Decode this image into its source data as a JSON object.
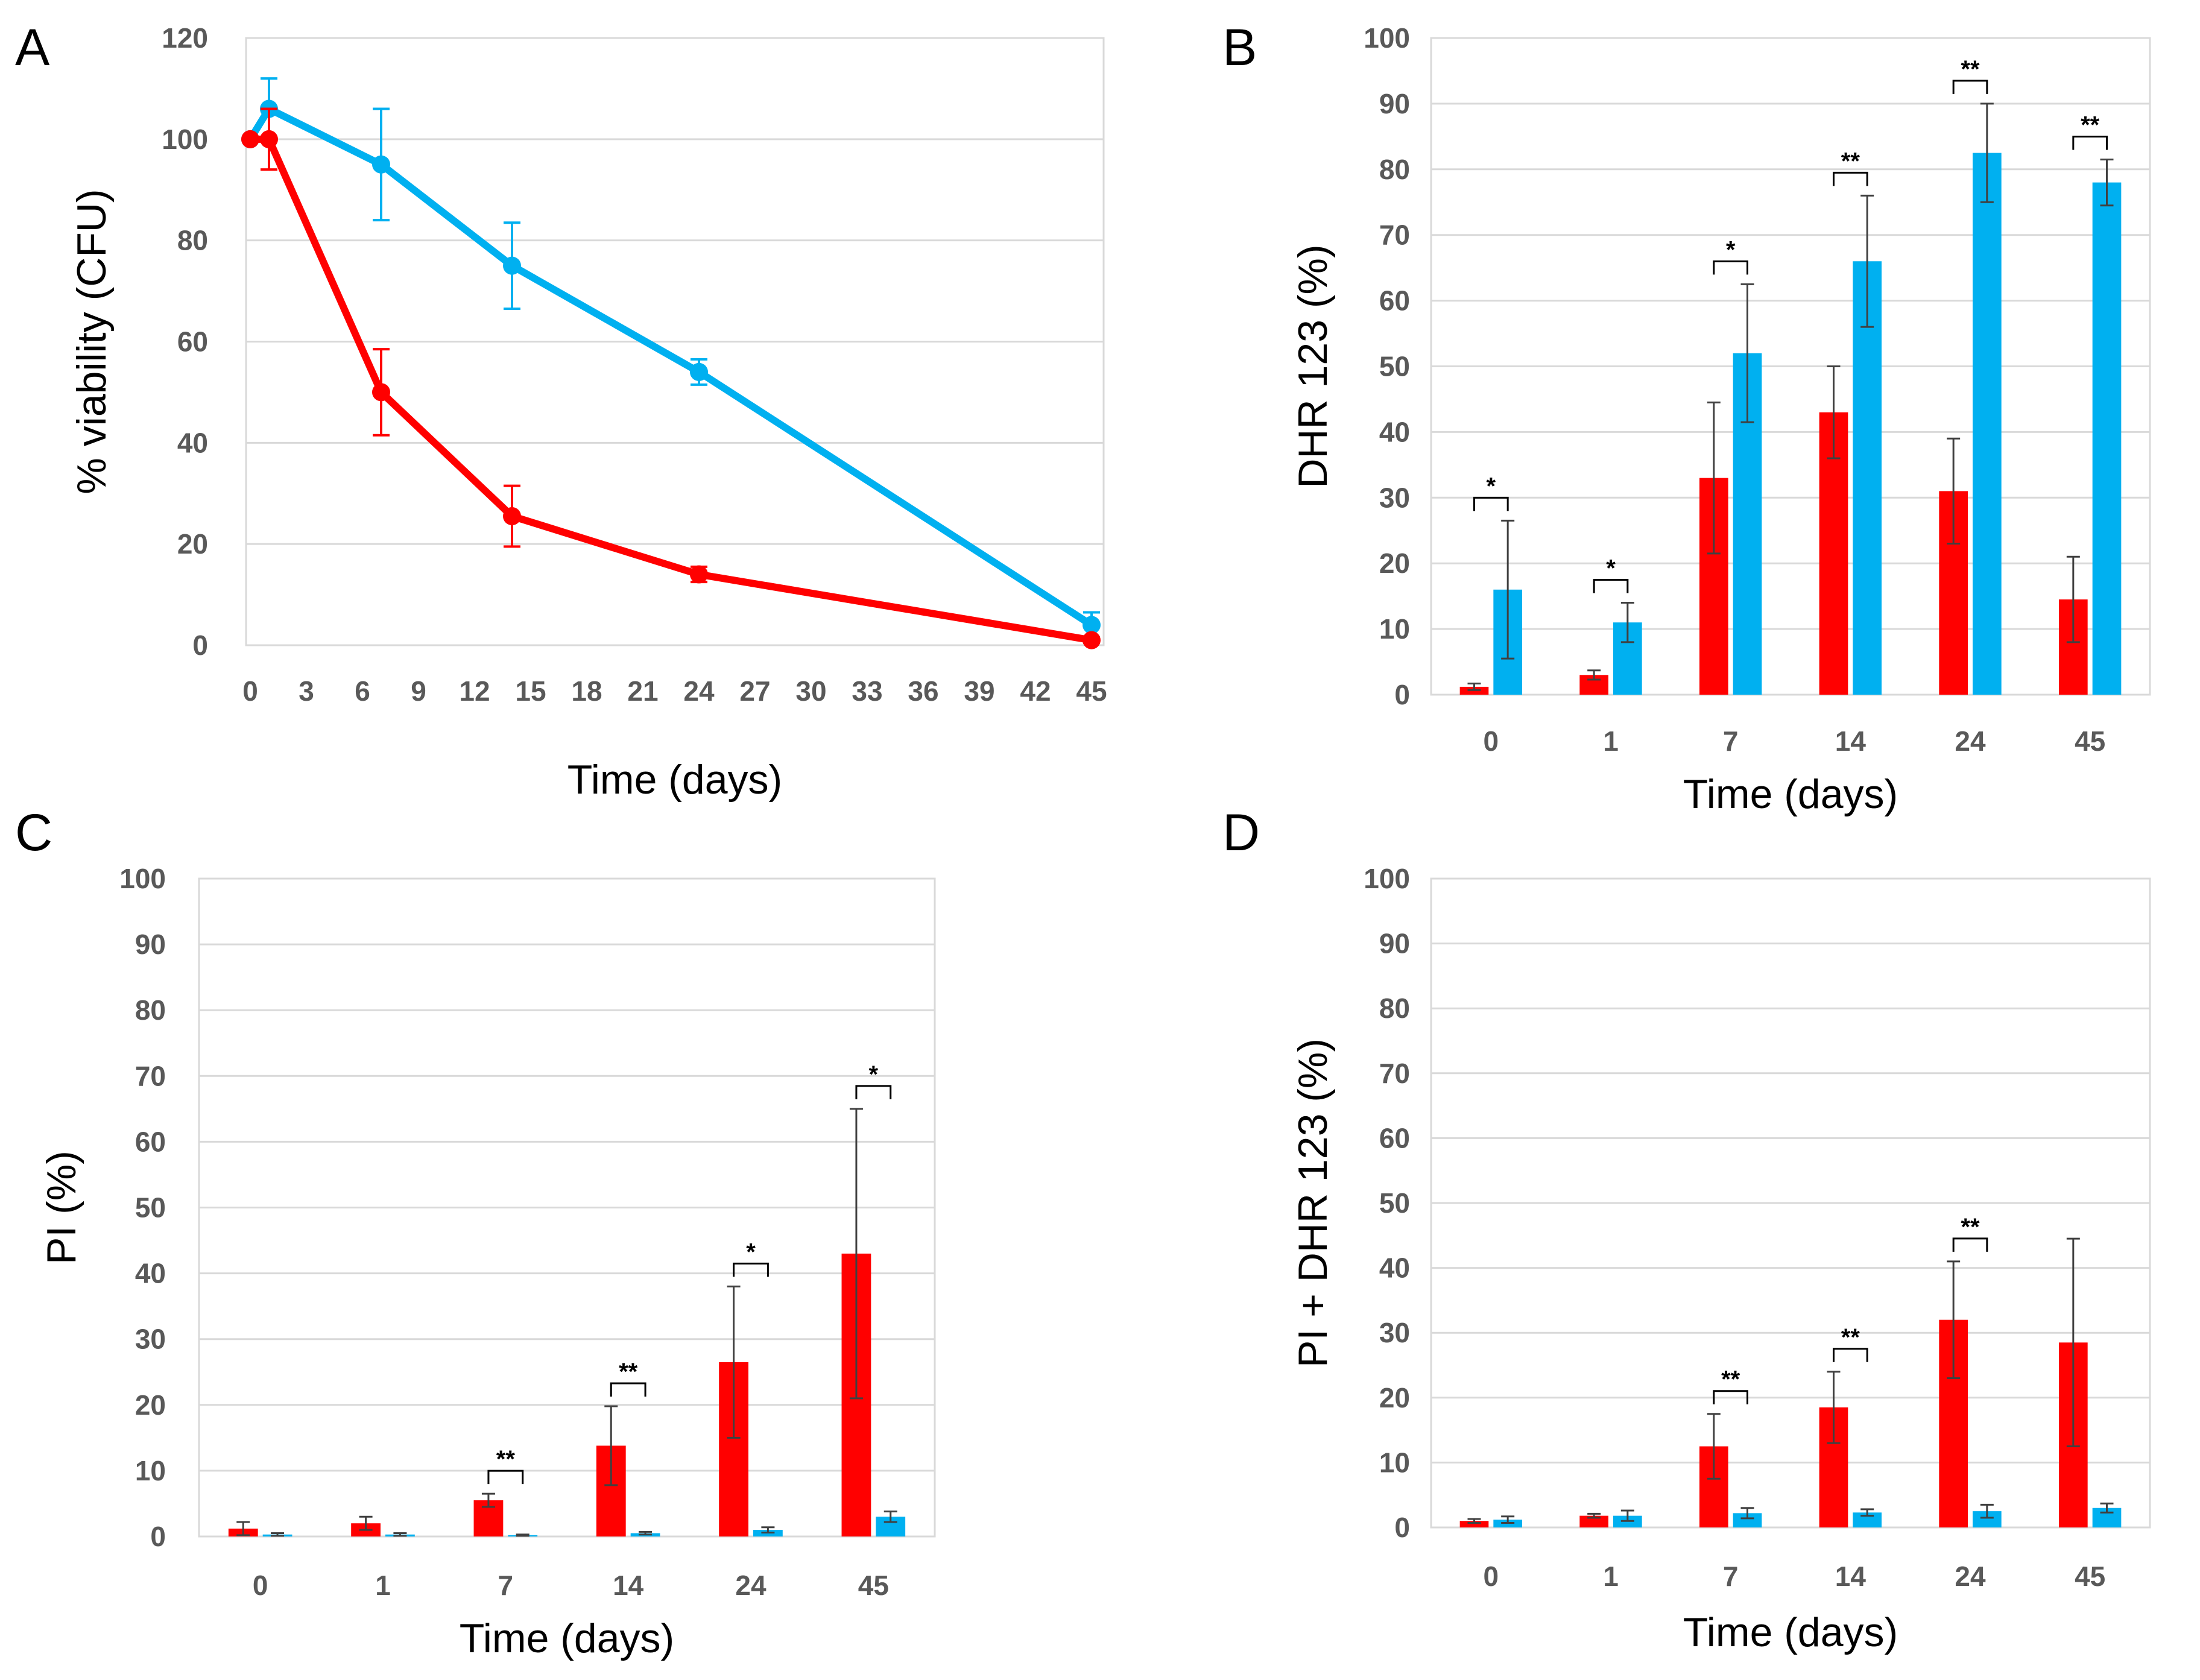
{
  "colors": {
    "red": "#ff0000",
    "blue": "#00b0f0",
    "errorbar_bar": "#404040"
  },
  "chart_data": [
    {
      "panel": "A",
      "type": "line",
      "xlabel": "Time (days)",
      "ylabel": "% viability (CFU)",
      "xlim": [
        0,
        45
      ],
      "ylim": [
        0,
        120
      ],
      "xticks": [
        0,
        3,
        6,
        9,
        12,
        15,
        18,
        21,
        24,
        27,
        30,
        33,
        36,
        39,
        42,
        45
      ],
      "yticks": [
        0,
        20,
        40,
        60,
        80,
        100,
        120
      ],
      "grid": true,
      "series": [
        {
          "color": "#00b0f0",
          "x": [
            0,
            1,
            7,
            14,
            24,
            45
          ],
          "y": [
            100,
            106,
            95,
            75,
            54,
            4
          ],
          "err": [
            0,
            6,
            11,
            8.5,
            2.5,
            2.5
          ]
        },
        {
          "color": "#ff0000",
          "x": [
            0,
            1,
            7,
            14,
            24,
            45
          ],
          "y": [
            100,
            100,
            50,
            25.5,
            14,
            1
          ],
          "err": [
            0,
            6,
            8.5,
            6,
            1.5,
            0.5
          ]
        }
      ]
    },
    {
      "panel": "B",
      "type": "bar",
      "categories": [
        "0",
        "1",
        "7",
        "14",
        "24",
        "45"
      ],
      "xlabel": "Time (days)",
      "ylabel": "DHR 123 (%)",
      "ylim": [
        0,
        100
      ],
      "yticks": [
        0,
        10,
        20,
        30,
        40,
        50,
        60,
        70,
        80,
        90,
        100
      ],
      "grid": true,
      "series": [
        {
          "color": "#ff0000",
          "values": [
            1.2,
            3,
            33,
            43,
            31,
            14.5
          ],
          "err": [
            0.5,
            0.7,
            11.5,
            7,
            8,
            6.5
          ]
        },
        {
          "color": "#00b0f0",
          "values": [
            16,
            11,
            52,
            66,
            82.5,
            78
          ],
          "err": [
            10.5,
            3,
            10.5,
            10,
            7.5,
            3.5
          ]
        }
      ],
      "significance": [
        "*",
        "*",
        "*",
        "**",
        "**",
        "**"
      ]
    },
    {
      "panel": "C",
      "type": "bar",
      "categories": [
        "0",
        "1",
        "7",
        "14",
        "24",
        "45"
      ],
      "xlabel": "Time (days)",
      "ylabel": "PI (%)",
      "ylim": [
        0,
        100
      ],
      "yticks": [
        0,
        10,
        20,
        30,
        40,
        50,
        60,
        70,
        80,
        90,
        100
      ],
      "grid": true,
      "series": [
        {
          "color": "#ff0000",
          "values": [
            1.2,
            2,
            5.5,
            13.8,
            26.5,
            43
          ],
          "err": [
            1,
            1,
            1,
            6,
            11.5,
            22
          ]
        },
        {
          "color": "#00b0f0",
          "values": [
            0.3,
            0.3,
            0.2,
            0.5,
            1,
            3
          ],
          "err": [
            0.2,
            0.2,
            0.1,
            0.2,
            0.4,
            0.8
          ]
        }
      ],
      "significance": [
        "",
        "",
        "**",
        "**",
        "*",
        "*"
      ]
    },
    {
      "panel": "D",
      "type": "bar",
      "categories": [
        "0",
        "1",
        "7",
        "14",
        "24",
        "45"
      ],
      "xlabel": "Time (days)",
      "ylabel": "PI + DHR 123 (%)",
      "ylim": [
        0,
        100
      ],
      "yticks": [
        0,
        10,
        20,
        30,
        40,
        50,
        60,
        70,
        80,
        90,
        100
      ],
      "grid": true,
      "series": [
        {
          "color": "#ff0000",
          "values": [
            1,
            1.8,
            12.5,
            18.5,
            32,
            28.5
          ],
          "err": [
            0.3,
            0.3,
            5,
            5.5,
            9,
            16
          ]
        },
        {
          "color": "#00b0f0",
          "values": [
            1.2,
            1.8,
            2.2,
            2.3,
            2.5,
            3
          ],
          "err": [
            0.5,
            0.8,
            0.8,
            0.5,
            1,
            0.7
          ]
        }
      ],
      "significance": [
        "",
        "",
        "**",
        "**",
        "**",
        ""
      ]
    }
  ]
}
